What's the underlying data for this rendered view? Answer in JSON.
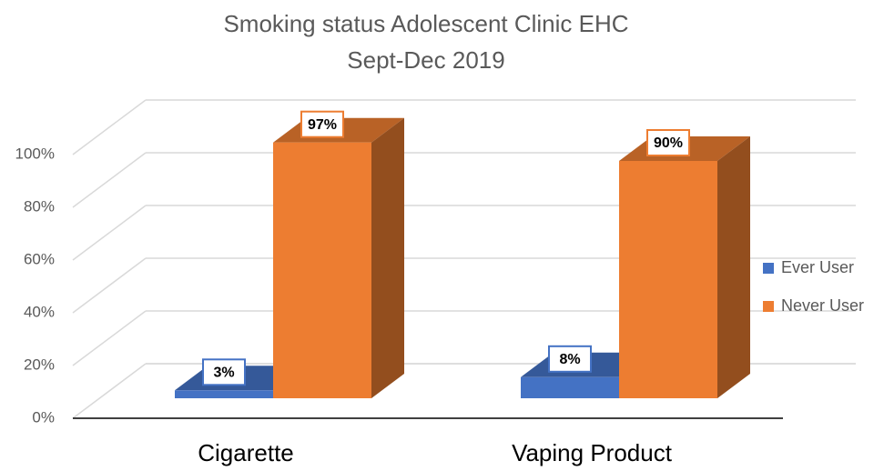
{
  "chart_data": {
    "type": "bar3d",
    "title": "Smoking status Adolescent Clinic EHC",
    "subtitle": "Sept-Dec 2019",
    "categories": [
      "Cigarette",
      "Vaping Product"
    ],
    "series": [
      {
        "name": "Ever User",
        "color": "#4472c4",
        "values": [
          3,
          8
        ],
        "value_labels": [
          "3%",
          "8%"
        ]
      },
      {
        "name": "Never User",
        "color": "#ed7d31",
        "values": [
          97,
          90
        ],
        "value_labels": [
          "97%",
          "90%"
        ]
      }
    ],
    "ylim": [
      0,
      100
    ],
    "yticks": [
      {
        "value": 0,
        "label": "0%"
      },
      {
        "value": 20,
        "label": "20%"
      },
      {
        "value": 40,
        "label": "40%"
      },
      {
        "value": 60,
        "label": "60%"
      },
      {
        "value": 80,
        "label": "80%"
      },
      {
        "value": 100,
        "label": "100%"
      }
    ],
    "grid": true,
    "legend": "right"
  }
}
